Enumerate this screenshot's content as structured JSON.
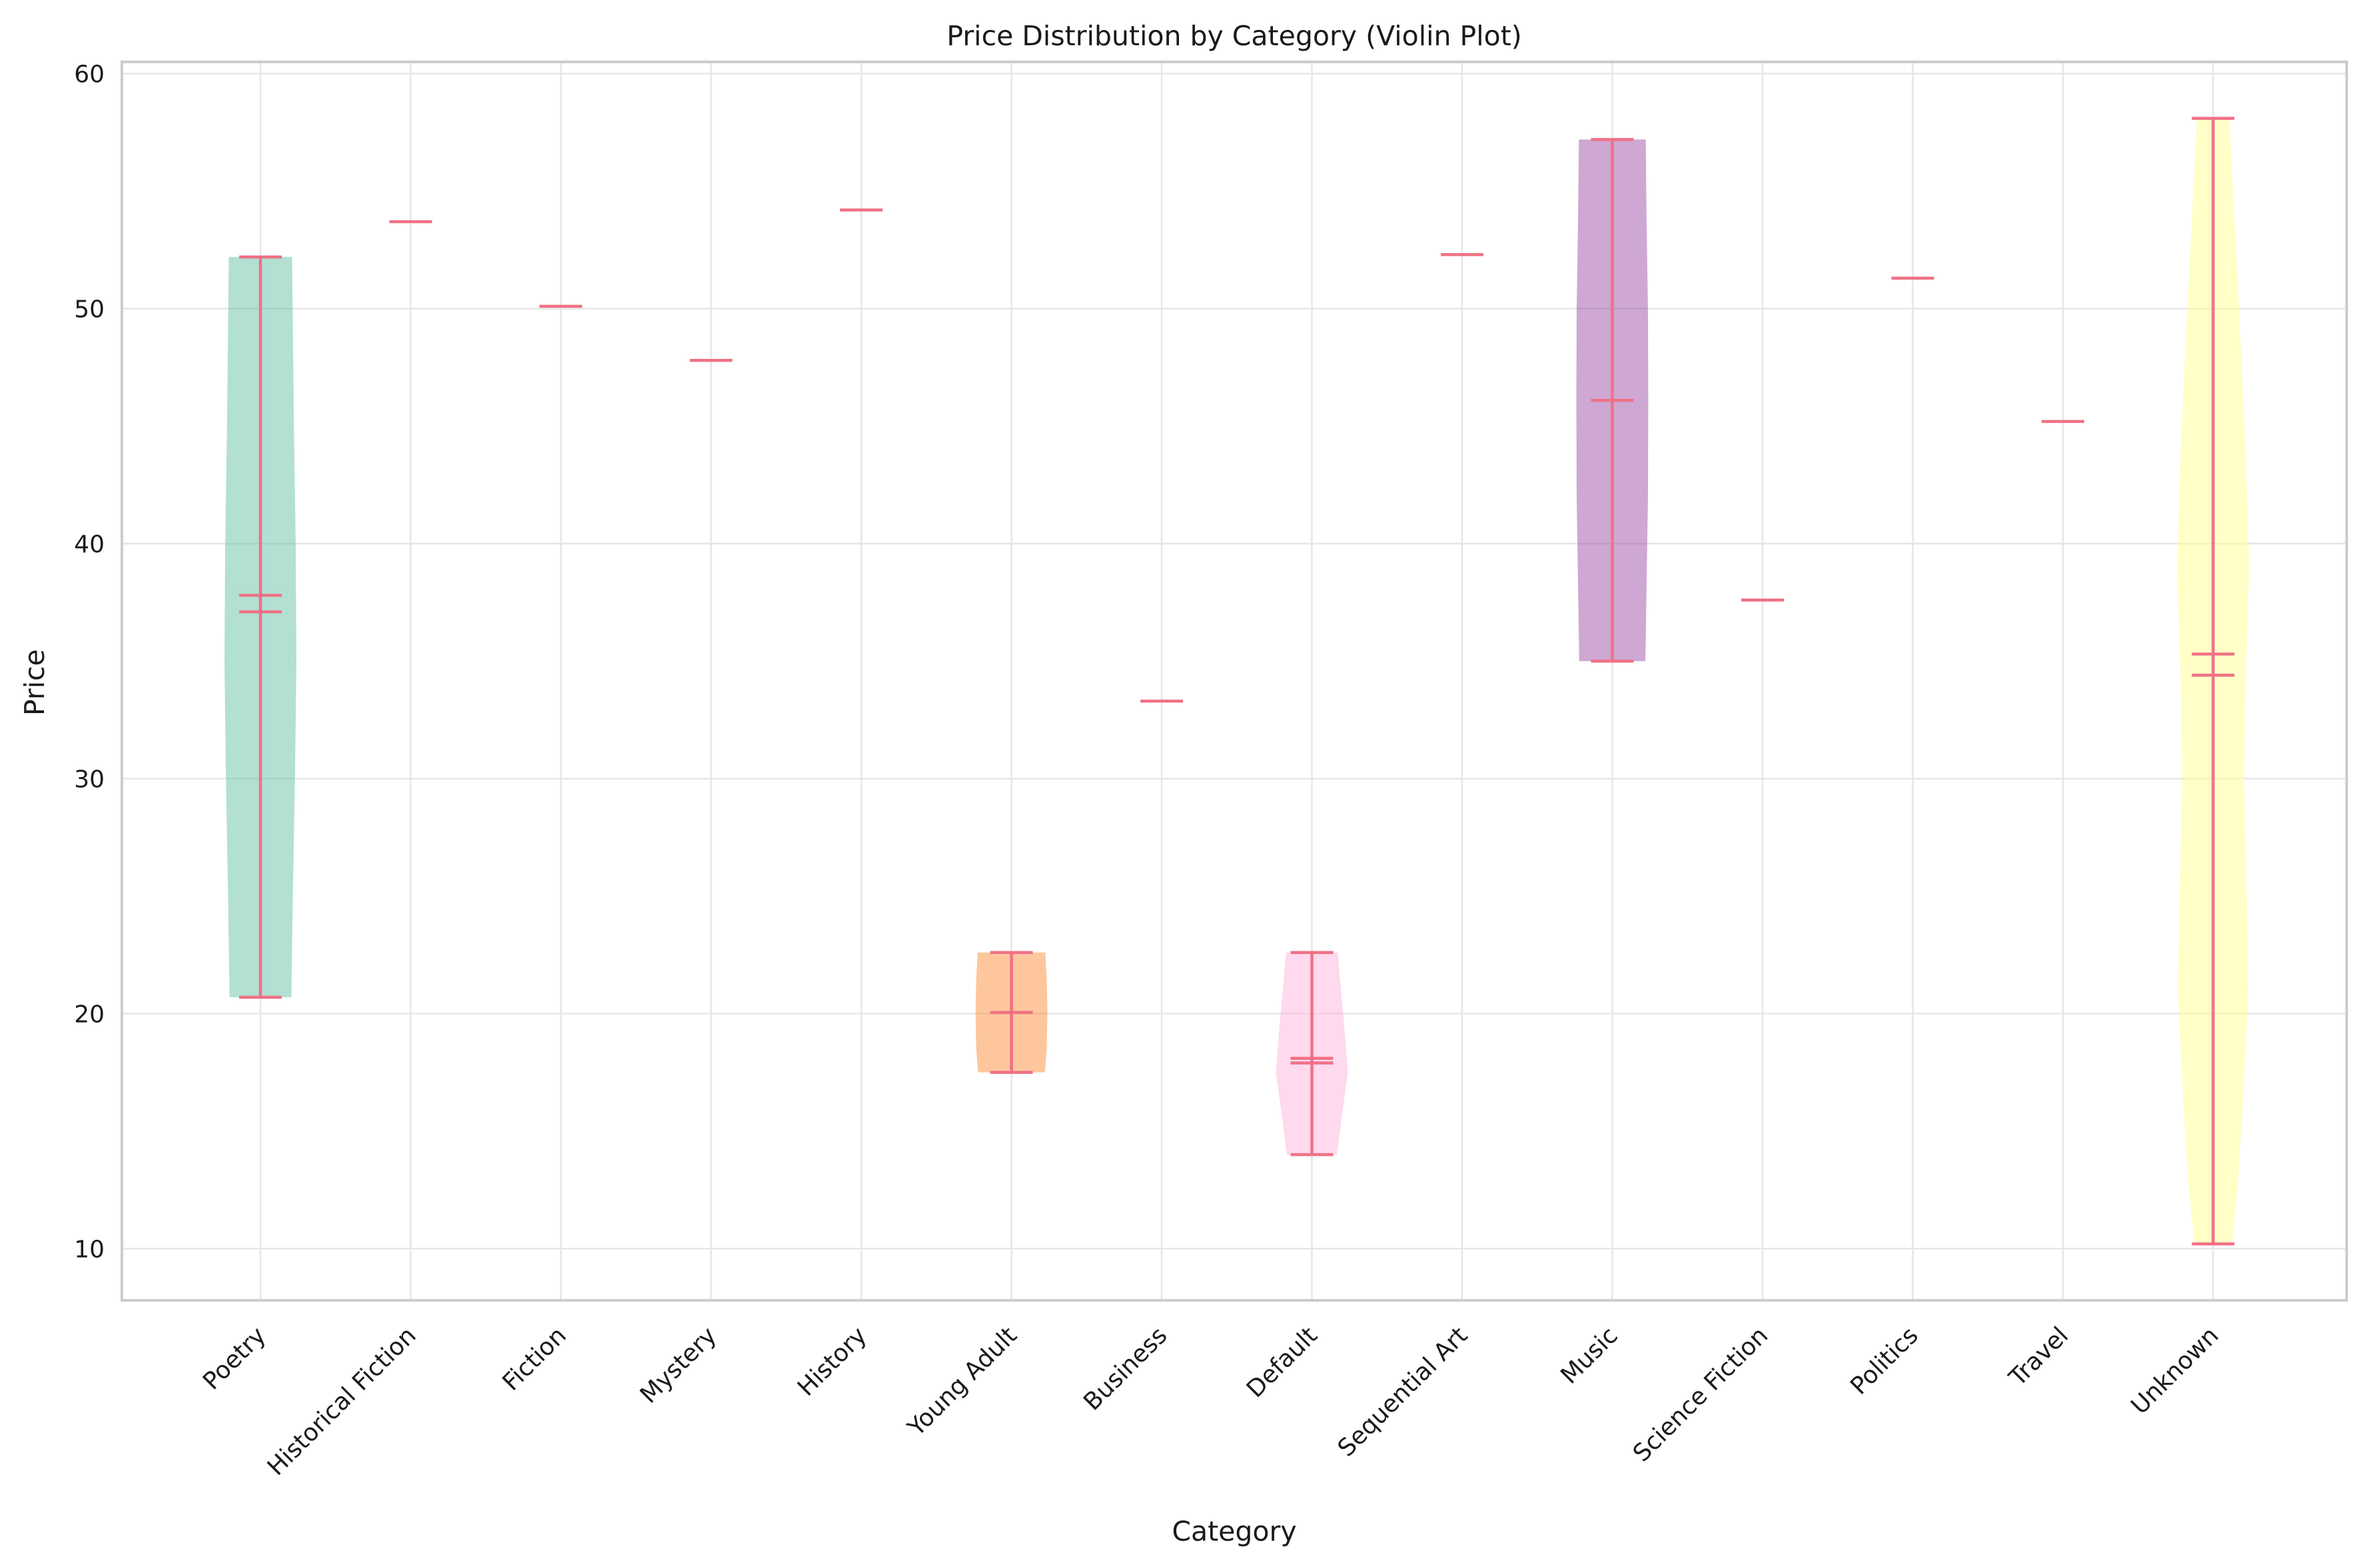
{
  "chart_data": {
    "type": "violin",
    "title": "Price Distribution by Category (Violin Plot)",
    "xlabel": "Category",
    "ylabel": "Price",
    "ylim": [
      7.8,
      60.5
    ],
    "yticks": [
      10,
      20,
      30,
      40,
      50,
      60
    ],
    "grid": true,
    "line_color": "#f07185",
    "categories": [
      "Poetry",
      "Historical Fiction",
      "Fiction",
      "Mystery",
      "History",
      "Young Adult",
      "Business",
      "Default",
      "Sequential Art",
      "Music",
      "Science Fiction",
      "Politics",
      "Travel",
      "Unknown"
    ],
    "series": [
      {
        "category": "Poetry",
        "min": 20.7,
        "max": 52.2,
        "mean": 37.8,
        "median": 37.1,
        "color": "#66c2a5",
        "density": [
          [
            20.7,
            0.86
          ],
          [
            25,
            0.9
          ],
          [
            30,
            0.96
          ],
          [
            35,
            1.0
          ],
          [
            40,
            0.98
          ],
          [
            45,
            0.93
          ],
          [
            52.2,
            0.88
          ]
        ]
      },
      {
        "category": "Historical Fiction",
        "min": 53.7,
        "max": 53.7,
        "mean": 53.7,
        "median": 53.7,
        "color": "#66c2a5",
        "density": []
      },
      {
        "category": "Fiction",
        "min": 50.1,
        "max": 50.1,
        "mean": 50.1,
        "median": 50.1,
        "color": "#66c2a5",
        "density": []
      },
      {
        "category": "Mystery",
        "min": 47.8,
        "max": 47.8,
        "mean": 47.8,
        "median": 47.8,
        "color": "#66c2a5",
        "density": []
      },
      {
        "category": "History",
        "min": 54.2,
        "max": 54.2,
        "mean": 54.2,
        "median": 54.2,
        "color": "#66c2a5",
        "density": []
      },
      {
        "category": "Young Adult",
        "min": 17.5,
        "max": 22.6,
        "mean": 20.05,
        "median": 20.05,
        "color": "#fc8d3c",
        "density": [
          [
            17.5,
            0.93
          ],
          [
            18.5,
            0.98
          ],
          [
            20.05,
            1.0
          ],
          [
            21.5,
            0.98
          ],
          [
            22.6,
            0.94
          ]
        ]
      },
      {
        "category": "Business",
        "min": 33.3,
        "max": 33.3,
        "mean": 33.3,
        "median": 33.3,
        "color": "#66c2a5",
        "density": []
      },
      {
        "category": "Default",
        "min": 14.0,
        "max": 22.6,
        "mean": 18.1,
        "median": 17.9,
        "color": "#ffb3de",
        "density": [
          [
            14.0,
            0.7
          ],
          [
            15.5,
            0.82
          ],
          [
            17.5,
            1.0
          ],
          [
            19.5,
            0.9
          ],
          [
            21.5,
            0.78
          ],
          [
            22.6,
            0.72
          ]
        ]
      },
      {
        "category": "Sequential Art",
        "min": 52.3,
        "max": 52.3,
        "mean": 52.3,
        "median": 52.3,
        "color": "#66c2a5",
        "density": []
      },
      {
        "category": "Music",
        "min": 35.0,
        "max": 57.2,
        "mean": 46.1,
        "median": 46.1,
        "color": "#9e4fa8",
        "density": [
          [
            35.0,
            0.92
          ],
          [
            38,
            0.95
          ],
          [
            42,
            0.99
          ],
          [
            46.1,
            1.0
          ],
          [
            50,
            0.99
          ],
          [
            54,
            0.95
          ],
          [
            57.2,
            0.93
          ]
        ]
      },
      {
        "category": "Science Fiction",
        "min": 37.6,
        "max": 37.6,
        "mean": 37.6,
        "median": 37.6,
        "color": "#66c2a5",
        "density": []
      },
      {
        "category": "Politics",
        "min": 51.3,
        "max": 51.3,
        "mean": 51.3,
        "median": 51.3,
        "color": "#66c2a5",
        "density": []
      },
      {
        "category": "Travel",
        "min": 45.2,
        "max": 45.2,
        "mean": 45.2,
        "median": 45.2,
        "color": "#66c2a5",
        "density": []
      },
      {
        "category": "Unknown",
        "min": 10.2,
        "max": 58.1,
        "mean": 35.3,
        "median": 34.4,
        "color": "#ffff8f",
        "density": [
          [
            10.2,
            0.52
          ],
          [
            13,
            0.7
          ],
          [
            16,
            0.82
          ],
          [
            21,
            0.98
          ],
          [
            25,
            0.93
          ],
          [
            30,
            0.86
          ],
          [
            34,
            0.9
          ],
          [
            39,
            1.0
          ],
          [
            44,
            0.9
          ],
          [
            50,
            0.72
          ],
          [
            55,
            0.55
          ],
          [
            58.1,
            0.45
          ]
        ]
      }
    ]
  }
}
